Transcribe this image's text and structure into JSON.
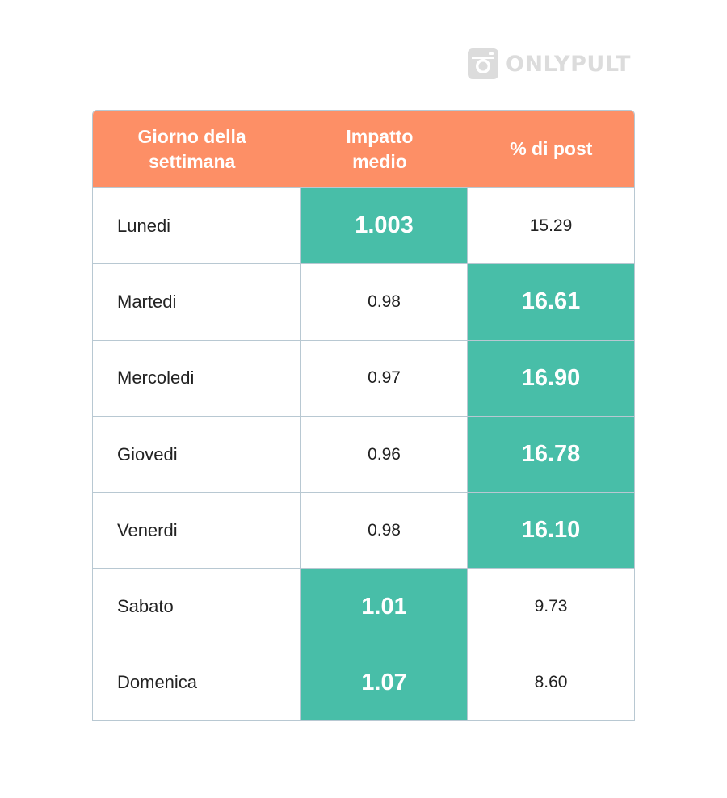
{
  "logo": {
    "text": "ONLYPULT",
    "icon": "camera-icon"
  },
  "colors": {
    "header_bg": "#fd8f66",
    "highlight_bg": "#48bea8",
    "border": "#b8c8d2",
    "logo_gray": "#dcdcdc"
  },
  "chart_data": {
    "type": "table",
    "columns": [
      "Giorno della\nsettimana",
      "Impatto\nmedio",
      "% di post"
    ],
    "rows": [
      {
        "day": "Lunedi",
        "impact": "1.003",
        "posts": "15.29",
        "highlight": "impact"
      },
      {
        "day": "Martedi",
        "impact": "0.98",
        "posts": "16.61",
        "highlight": "posts"
      },
      {
        "day": "Mercoledi",
        "impact": "0.97",
        "posts": "16.90",
        "highlight": "posts"
      },
      {
        "day": "Giovedi",
        "impact": "0.96",
        "posts": "16.78",
        "highlight": "posts"
      },
      {
        "day": "Venerdi",
        "impact": "0.98",
        "posts": "16.10",
        "highlight": "posts"
      },
      {
        "day": "Sabato",
        "impact": "1.01",
        "posts": "9.73",
        "highlight": "impact"
      },
      {
        "day": "Domenica",
        "impact": "1.07",
        "posts": "8.60",
        "highlight": "impact"
      }
    ]
  }
}
